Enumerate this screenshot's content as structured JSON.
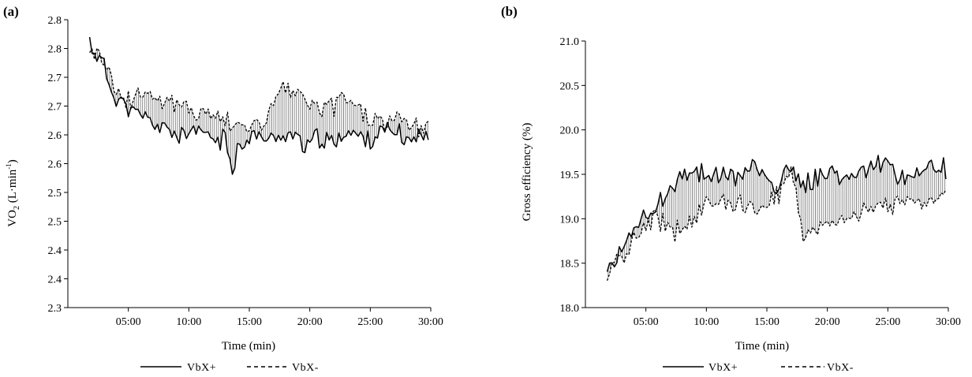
{
  "chart_data": [
    {
      "type": "line",
      "panel_label": "(a)",
      "ylabel_main": "VO",
      "ylabel_sub": "2",
      "ylabel_tail": " (L·min",
      "ylabel_sup": "-1",
      "ylabel_close": ")",
      "xlabel": "Time (min)",
      "x_ticks": [
        "05:00",
        "10:00",
        "15:00",
        "20:00",
        "25:00",
        "30:00"
      ],
      "x_tick_minutes": [
        5,
        10,
        15,
        20,
        25,
        30
      ],
      "xlim": [
        0,
        30
      ],
      "y_ticks": [
        "2.3",
        "2.4",
        "2.4",
        "2.5",
        "2.5",
        "2.6",
        "2.6",
        "2.7",
        "2.7",
        "2.8",
        "2.8"
      ],
      "ylim": [
        0,
        10
      ],
      "shaded_between_series": true,
      "legend": {
        "position": "bottom-center",
        "entries": [
          {
            "label": "VbX+",
            "style": "solid"
          },
          {
            "label": "VbX-",
            "style": "dashed"
          }
        ]
      },
      "series": [
        {
          "name": "VbX+",
          "style": "solid",
          "anchors_x": [
            1.8,
            2.5,
            3,
            3.5,
            4,
            4.5,
            5,
            6,
            7,
            7.5,
            8,
            9,
            10,
            11,
            12,
            13,
            13.6,
            14,
            15,
            16,
            17,
            18,
            19,
            19.7,
            20.5,
            21,
            22,
            23,
            24,
            25,
            26,
            27,
            28,
            29,
            29.8
          ],
          "anchors_y": [
            9.2,
            8.7,
            8.4,
            7.6,
            7.3,
            7.2,
            6.9,
            6.6,
            6.5,
            6.2,
            6.3,
            6.0,
            6.0,
            6.1,
            5.9,
            5.8,
            4.8,
            5.5,
            6.0,
            5.9,
            5.8,
            6.1,
            5.9,
            5.6,
            5.9,
            5.8,
            5.7,
            6.2,
            5.9,
            5.9,
            6.1,
            6.1,
            5.8,
            6.0,
            5.9
          ],
          "amplitude": 0.28
        },
        {
          "name": "VbX-",
          "style": "dashed",
          "anchors_x": [
            1.8,
            2.5,
            3,
            3.5,
            4,
            4.5,
            5,
            6,
            7,
            7.5,
            8,
            9,
            10,
            11,
            12,
            13,
            14,
            15,
            16,
            17,
            18,
            19,
            20,
            21,
            22,
            23,
            23.5,
            24,
            25,
            26,
            27,
            28,
            29,
            29.8
          ],
          "anchors_y": [
            9.0,
            8.9,
            8.6,
            8.1,
            7.6,
            7.2,
            7.2,
            7.5,
            7.5,
            7.2,
            7.2,
            7.0,
            6.9,
            6.8,
            6.7,
            6.5,
            6.5,
            6.3,
            6.2,
            7.3,
            7.7,
            7.3,
            7.1,
            6.9,
            6.9,
            7.3,
            7.3,
            6.9,
            6.6,
            6.4,
            6.6,
            6.6,
            6.2,
            6.4
          ],
          "amplitude": 0.35
        }
      ]
    },
    {
      "type": "line",
      "panel_label": "(b)",
      "ylabel_main": "Gross efficiency (%)",
      "xlabel": "Time (min)",
      "x_ticks": [
        "05:00",
        "10:00",
        "15:00",
        "20:00",
        "25:00",
        "30:00"
      ],
      "x_tick_minutes": [
        5,
        10,
        15,
        20,
        25,
        30
      ],
      "xlim": [
        0,
        30
      ],
      "y_ticks": [
        "18.0",
        "18.5",
        "19.0",
        "19.5",
        "20.0",
        "20.5",
        "21.0"
      ],
      "ylim": [
        18.0,
        21.0
      ],
      "shaded_between_series": true,
      "legend": {
        "position": "bottom-center",
        "entries": [
          {
            "label": "VbX+",
            "style": "solid"
          },
          {
            "label": "VbX-",
            "style": "dashed"
          }
        ]
      },
      "series": [
        {
          "name": "VbX+",
          "style": "solid",
          "anchors_x": [
            1.8,
            2.5,
            3,
            4,
            5,
            6,
            7,
            8,
            9,
            10,
            11,
            12,
            13,
            14,
            15,
            16,
            17,
            18,
            19,
            20,
            21,
            22,
            23,
            24,
            25,
            26,
            27,
            28,
            29,
            29.8
          ],
          "anchors_y": [
            18.38,
            18.55,
            18.65,
            18.85,
            19.0,
            19.15,
            19.3,
            19.5,
            19.55,
            19.5,
            19.45,
            19.5,
            19.45,
            19.6,
            19.4,
            19.35,
            19.6,
            19.35,
            19.45,
            19.55,
            19.45,
            19.5,
            19.55,
            19.6,
            19.6,
            19.45,
            19.5,
            19.5,
            19.6,
            19.55
          ],
          "amplitude": 0.09
        },
        {
          "name": "VbX-",
          "style": "dashed",
          "anchors_x": [
            1.8,
            2.5,
            3,
            4,
            5,
            6,
            7,
            8,
            9,
            10,
            11,
            12,
            13,
            14,
            15,
            16,
            17,
            18,
            19,
            20,
            21,
            22,
            23,
            24,
            25,
            26,
            27,
            28,
            29,
            29.8
          ],
          "anchors_y": [
            18.38,
            18.5,
            18.55,
            18.75,
            18.95,
            19.0,
            18.85,
            18.9,
            19.05,
            19.15,
            19.2,
            19.2,
            19.15,
            19.1,
            19.1,
            19.3,
            19.6,
            18.8,
            18.9,
            18.95,
            19.0,
            19.05,
            19.1,
            19.05,
            19.15,
            19.2,
            19.25,
            19.2,
            19.25,
            19.3
          ],
          "amplitude": 0.09
        }
      ]
    }
  ]
}
